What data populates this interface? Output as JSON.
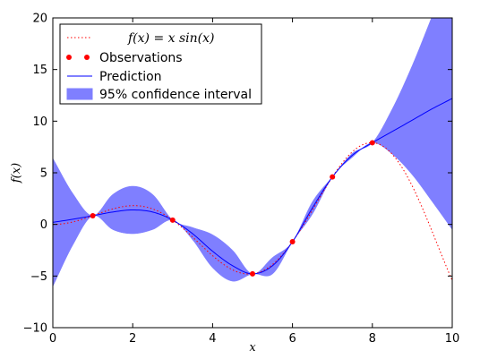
{
  "chart_data": {
    "type": "line",
    "xlabel": "x",
    "ylabel": "f(x)",
    "xlim": [
      0,
      10
    ],
    "ylim": [
      -10,
      20
    ],
    "xticks": [
      0,
      2,
      4,
      6,
      8,
      10
    ],
    "yticks": [
      -10,
      -5,
      0,
      5,
      10,
      15,
      20
    ],
    "legend_position": "top-left",
    "colors": {
      "true_function": "#ff0000",
      "observations": "#ff0000",
      "prediction": "#0000ff",
      "confidence_fill": "#7f7fff"
    },
    "series": [
      {
        "name": "f(x) = x sin(x)",
        "kind": "dotted-line",
        "function": "x*sin(x)"
      },
      {
        "name": "Observations",
        "kind": "markers",
        "x": [
          1,
          3,
          5,
          6,
          7,
          8
        ],
        "y": [
          0.84,
          0.42,
          -4.79,
          -1.68,
          4.6,
          7.91
        ]
      },
      {
        "name": "Prediction",
        "kind": "line",
        "x": [
          0,
          0.5,
          1,
          1.5,
          2,
          2.5,
          3,
          3.5,
          4,
          4.5,
          5,
          5.5,
          6,
          6.5,
          7,
          7.5,
          8,
          8.5,
          9,
          9.5,
          10
        ],
        "y": [
          0.2,
          0.5,
          0.84,
          1.2,
          1.4,
          1.2,
          0.42,
          -0.9,
          -2.6,
          -4.0,
          -4.79,
          -4.0,
          -1.68,
          1.6,
          4.6,
          6.7,
          7.91,
          9.0,
          10.1,
          11.2,
          12.2
        ]
      },
      {
        "name": "95% confidence interval",
        "kind": "band",
        "x": [
          0,
          0.5,
          1,
          1.5,
          2,
          2.5,
          3,
          3.5,
          4,
          4.5,
          5,
          5.5,
          6,
          6.5,
          7,
          7.5,
          8,
          8.5,
          9,
          9.5,
          10
        ],
        "lower": [
          -6.0,
          -2.0,
          0.84,
          -0.5,
          -0.9,
          -0.5,
          0.42,
          -1.5,
          -4.2,
          -5.5,
          -4.79,
          -4.8,
          -1.68,
          1.0,
          4.6,
          6.5,
          7.91,
          6.8,
          4.8,
          2.2,
          -0.5
        ],
        "upper": [
          6.4,
          3.0,
          0.84,
          2.9,
          3.7,
          2.9,
          0.42,
          -0.3,
          -1.0,
          -2.5,
          -4.79,
          -3.2,
          -1.68,
          2.2,
          4.6,
          6.9,
          7.91,
          11.2,
          15.4,
          20.2,
          25.0
        ]
      }
    ],
    "legend": [
      {
        "label": "f(x) = x sin(x)",
        "symbol": "dotted-line"
      },
      {
        "label": "Observations",
        "symbol": "markers"
      },
      {
        "label": "Prediction",
        "symbol": "line"
      },
      {
        "label": "95% confidence interval",
        "symbol": "patch"
      }
    ]
  }
}
